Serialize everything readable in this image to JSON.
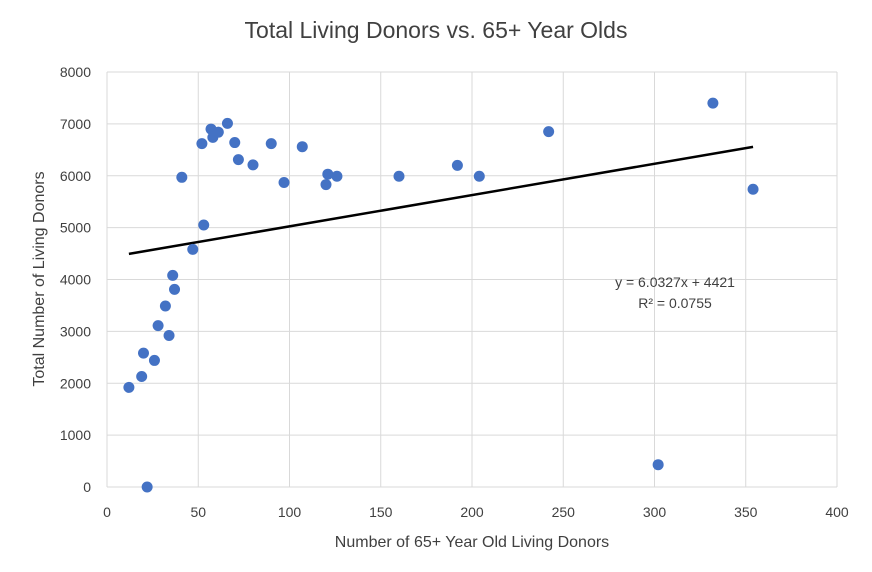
{
  "chart_data": {
    "type": "scatter",
    "title": "Total Living Donors vs. 65+ Year Olds",
    "xlabel": "Number of 65+ Year Old Living Donors",
    "ylabel": "Total Number of Living Donors",
    "xlim": [
      0,
      400
    ],
    "ylim": [
      0,
      8000
    ],
    "x_ticks": [
      0,
      50,
      100,
      150,
      200,
      250,
      300,
      350,
      400
    ],
    "y_ticks": [
      0,
      1000,
      2000,
      3000,
      4000,
      5000,
      6000,
      7000,
      8000
    ],
    "x_tick_labels": [
      "0",
      "50",
      "100",
      "150",
      "200",
      "250",
      "300",
      "350",
      "400"
    ],
    "y_tick_labels": [
      "0",
      "1000",
      "2000",
      "3000",
      "4000",
      "5000",
      "6000",
      "7000",
      "8000"
    ],
    "grid": "vertical-and-horizontal",
    "marker_color": "#4472C4",
    "trendline_color": "#000000",
    "series": [
      {
        "points": [
          {
            "x": 12,
            "y": 1920
          },
          {
            "x": 19,
            "y": 2130
          },
          {
            "x": 20,
            "y": 2580
          },
          {
            "x": 22,
            "y": 0
          },
          {
            "x": 26,
            "y": 2440
          },
          {
            "x": 28,
            "y": 3110
          },
          {
            "x": 32,
            "y": 3490
          },
          {
            "x": 34,
            "y": 2920
          },
          {
            "x": 36,
            "y": 4080
          },
          {
            "x": 37,
            "y": 3810
          },
          {
            "x": 41,
            "y": 5970
          },
          {
            "x": 47,
            "y": 4580
          },
          {
            "x": 52,
            "y": 6620
          },
          {
            "x": 53,
            "y": 5050
          },
          {
            "x": 57,
            "y": 6900
          },
          {
            "x": 58,
            "y": 6740
          },
          {
            "x": 61,
            "y": 6840
          },
          {
            "x": 66,
            "y": 7010
          },
          {
            "x": 70,
            "y": 6640
          },
          {
            "x": 72,
            "y": 6310
          },
          {
            "x": 80,
            "y": 6210
          },
          {
            "x": 90,
            "y": 6620
          },
          {
            "x": 97,
            "y": 5870
          },
          {
            "x": 107,
            "y": 6560
          },
          {
            "x": 120,
            "y": 5830
          },
          {
            "x": 121,
            "y": 6030
          },
          {
            "x": 126,
            "y": 5990
          },
          {
            "x": 160,
            "y": 5990
          },
          {
            "x": 192,
            "y": 6200
          },
          {
            "x": 204,
            "y": 5990
          },
          {
            "x": 242,
            "y": 6850
          },
          {
            "x": 302,
            "y": 430
          },
          {
            "x": 332,
            "y": 7400
          },
          {
            "x": 354,
            "y": 5740
          }
        ]
      }
    ],
    "trendline": {
      "slope": 6.0327,
      "intercept": 4421,
      "x_range": [
        12,
        354
      ]
    },
    "annotations": {
      "equation": "y = 6.0327x + 4421",
      "r_squared": "R² = 0.0755"
    }
  }
}
